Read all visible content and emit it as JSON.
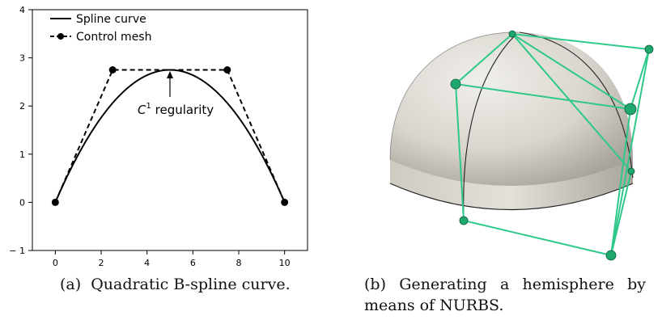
{
  "chart_data": {
    "type": "line",
    "xlim": [
      -1,
      11
    ],
    "ylim": [
      -1,
      4
    ],
    "xticks": [
      0,
      2,
      4,
      6,
      8,
      10
    ],
    "yticks": [
      -1,
      0,
      1,
      2,
      3,
      4
    ],
    "grid": false,
    "legend_placement": "top-left",
    "series": [
      {
        "name": "Spline curve",
        "style": "solid",
        "color": "#000000",
        "x": [
          0,
          1,
          2,
          3,
          4,
          5,
          6,
          7,
          8,
          9,
          10
        ],
        "y": [
          0,
          0.99,
          1.76,
          2.31,
          2.64,
          2.75,
          2.64,
          2.31,
          1.76,
          0.99,
          0
        ]
      },
      {
        "name": "Control mesh",
        "style": "dashed",
        "marker": "circle",
        "color": "#000000",
        "x": [
          0,
          2.5,
          7.5,
          10
        ],
        "y": [
          0,
          2.75,
          2.75,
          0
        ]
      }
    ],
    "annotation": {
      "text_base": "C",
      "text_sup": "1",
      "text_rest": " regularity",
      "x": 5,
      "y": 2.75
    }
  },
  "captions": {
    "a": "(a)  Quadratic B-spline curve.",
    "b_label": "(b)",
    "b_words": [
      "Generating",
      "a",
      "hemisphere",
      "by"
    ],
    "b_line2": "means of NURBS."
  },
  "colors": {
    "mesh_green": "#2ec98a",
    "surface": "#d9d6cf"
  }
}
